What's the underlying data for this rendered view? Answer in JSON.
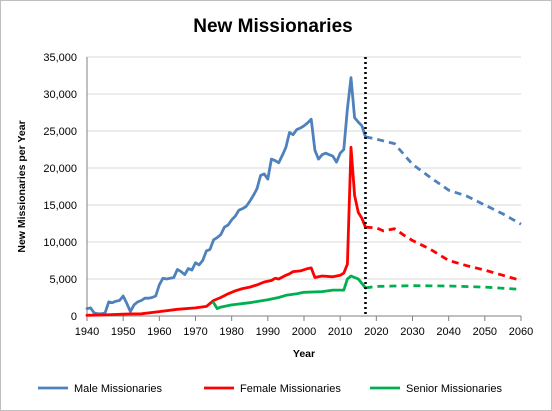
{
  "chart_data": {
    "type": "line",
    "title": "New Missionaries",
    "xlabel": "Year",
    "ylabel": "New Missionaries per Year",
    "xlim": [
      1940,
      2060
    ],
    "ylim": [
      0,
      35000
    ],
    "x_ticks": [
      "1940",
      "1950",
      "1960",
      "1970",
      "1980",
      "1990",
      "2000",
      "2010",
      "2020",
      "2030",
      "2040",
      "2050",
      "2060"
    ],
    "y_ticks": [
      "0",
      "5,000",
      "10,000",
      "15,000",
      "20,000",
      "25,000",
      "30,000",
      "35,000"
    ],
    "grid": "horizontal",
    "legend_position": "bottom",
    "vertical_marker": {
      "x": 2017,
      "style": "dotted"
    },
    "series": [
      {
        "name": "Male Missionaries",
        "color": "#4F81BD",
        "actual": [
          [
            1940,
            1000
          ],
          [
            1941,
            1100
          ],
          [
            1942,
            400
          ],
          [
            1943,
            300
          ],
          [
            1944,
            300
          ],
          [
            1945,
            400
          ],
          [
            1946,
            1900
          ],
          [
            1947,
            1800
          ],
          [
            1948,
            2000
          ],
          [
            1949,
            2100
          ],
          [
            1950,
            2700
          ],
          [
            1951,
            1700
          ],
          [
            1952,
            600
          ],
          [
            1953,
            1500
          ],
          [
            1954,
            1900
          ],
          [
            1955,
            2100
          ],
          [
            1956,
            2400
          ],
          [
            1957,
            2400
          ],
          [
            1958,
            2500
          ],
          [
            1959,
            2700
          ],
          [
            1960,
            4200
          ],
          [
            1961,
            5100
          ],
          [
            1962,
            5000
          ],
          [
            1963,
            5100
          ],
          [
            1964,
            5200
          ],
          [
            1965,
            6300
          ],
          [
            1966,
            6000
          ],
          [
            1967,
            5600
          ],
          [
            1968,
            6400
          ],
          [
            1969,
            6200
          ],
          [
            1970,
            7200
          ],
          [
            1971,
            6900
          ],
          [
            1972,
            7500
          ],
          [
            1973,
            8800
          ],
          [
            1974,
            9000
          ],
          [
            1975,
            10300
          ],
          [
            1976,
            10600
          ],
          [
            1977,
            11000
          ],
          [
            1978,
            12000
          ],
          [
            1979,
            12300
          ],
          [
            1980,
            13000
          ],
          [
            1981,
            13500
          ],
          [
            1982,
            14300
          ],
          [
            1983,
            14500
          ],
          [
            1984,
            14800
          ],
          [
            1985,
            15500
          ],
          [
            1986,
            16300
          ],
          [
            1987,
            17200
          ],
          [
            1988,
            19000
          ],
          [
            1989,
            19200
          ],
          [
            1990,
            18500
          ],
          [
            1991,
            21200
          ],
          [
            1992,
            21000
          ],
          [
            1993,
            20700
          ],
          [
            1994,
            21700
          ],
          [
            1995,
            22800
          ],
          [
            1996,
            24800
          ],
          [
            1997,
            24500
          ],
          [
            1998,
            25200
          ],
          [
            1999,
            25400
          ],
          [
            2000,
            25700
          ],
          [
            2001,
            26100
          ],
          [
            2002,
            26600
          ],
          [
            2003,
            22400
          ],
          [
            2004,
            21200
          ],
          [
            2005,
            21800
          ],
          [
            2006,
            22000
          ],
          [
            2007,
            21800
          ],
          [
            2008,
            21600
          ],
          [
            2009,
            20800
          ],
          [
            2010,
            22000
          ],
          [
            2011,
            22500
          ],
          [
            2012,
            28000
          ],
          [
            2013,
            32200
          ],
          [
            2014,
            26800
          ],
          [
            2015,
            26200
          ],
          [
            2016,
            25700
          ],
          [
            2017,
            24200
          ]
        ],
        "projected": [
          [
            2017,
            24200
          ],
          [
            2020,
            23900
          ],
          [
            2025,
            23300
          ],
          [
            2030,
            20500
          ],
          [
            2035,
            18700
          ],
          [
            2040,
            17000
          ],
          [
            2045,
            16200
          ],
          [
            2050,
            15000
          ],
          [
            2055,
            13800
          ],
          [
            2060,
            12400
          ]
        ]
      },
      {
        "name": "Female Missionaries",
        "color": "#FF0000",
        "actual": [
          [
            1940,
            100
          ],
          [
            1945,
            150
          ],
          [
            1950,
            250
          ],
          [
            1955,
            300
          ],
          [
            1960,
            600
          ],
          [
            1965,
            900
          ],
          [
            1970,
            1100
          ],
          [
            1973,
            1300
          ],
          [
            1975,
            2100
          ],
          [
            1977,
            2500
          ],
          [
            1979,
            3000
          ],
          [
            1981,
            3400
          ],
          [
            1983,
            3700
          ],
          [
            1985,
            3900
          ],
          [
            1987,
            4200
          ],
          [
            1989,
            4600
          ],
          [
            1991,
            4800
          ],
          [
            1992,
            5100
          ],
          [
            1993,
            5000
          ],
          [
            1995,
            5500
          ],
          [
            1996,
            5700
          ],
          [
            1997,
            6000
          ],
          [
            1999,
            6100
          ],
          [
            2001,
            6400
          ],
          [
            2002,
            6500
          ],
          [
            2003,
            5200
          ],
          [
            2005,
            5400
          ],
          [
            2008,
            5300
          ],
          [
            2010,
            5500
          ],
          [
            2011,
            5800
          ],
          [
            2012,
            7000
          ],
          [
            2013,
            22800
          ],
          [
            2014,
            16300
          ],
          [
            2015,
            14000
          ],
          [
            2016,
            13200
          ],
          [
            2017,
            12000
          ]
        ],
        "projected": [
          [
            2017,
            12000
          ],
          [
            2020,
            11900
          ],
          [
            2022,
            11500
          ],
          [
            2025,
            11800
          ],
          [
            2028,
            10800
          ],
          [
            2030,
            10200
          ],
          [
            2035,
            9000
          ],
          [
            2040,
            7500
          ],
          [
            2045,
            6800
          ],
          [
            2050,
            6200
          ],
          [
            2055,
            5500
          ],
          [
            2060,
            4800
          ]
        ]
      },
      {
        "name": "Senior Missionaries",
        "color": "#00B050",
        "actual": [
          [
            1975,
            1800
          ],
          [
            1976,
            1000
          ],
          [
            1977,
            1200
          ],
          [
            1980,
            1500
          ],
          [
            1985,
            1800
          ],
          [
            1990,
            2200
          ],
          [
            1993,
            2500
          ],
          [
            1995,
            2800
          ],
          [
            1998,
            3000
          ],
          [
            2000,
            3200
          ],
          [
            2005,
            3300
          ],
          [
            2008,
            3500
          ],
          [
            2011,
            3500
          ],
          [
            2012,
            5000
          ],
          [
            2013,
            5400
          ],
          [
            2015,
            5000
          ],
          [
            2017,
            3800
          ]
        ],
        "projected": [
          [
            2017,
            3800
          ],
          [
            2020,
            4000
          ],
          [
            2030,
            4100
          ],
          [
            2040,
            4050
          ],
          [
            2050,
            3900
          ],
          [
            2060,
            3600
          ]
        ]
      }
    ]
  }
}
